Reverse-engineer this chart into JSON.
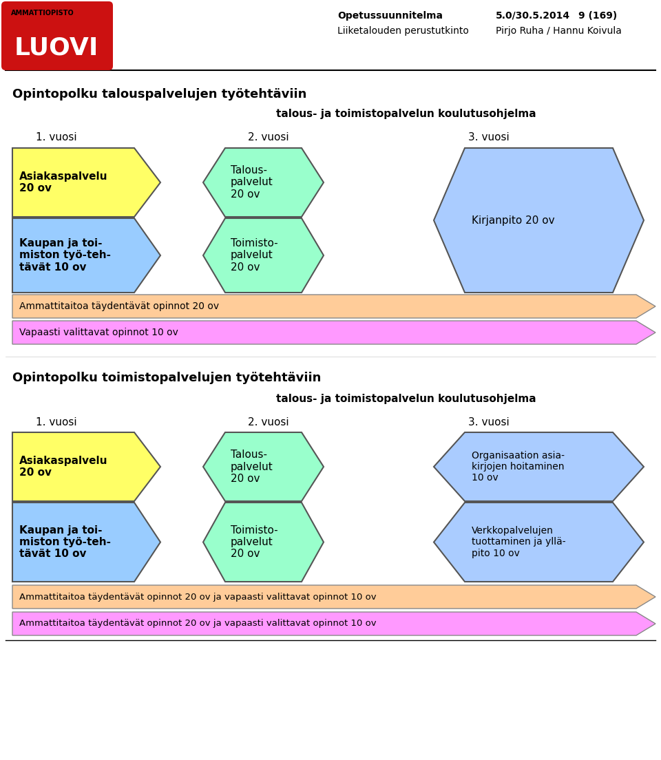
{
  "header_org": "AMMATTIOPISTO",
  "header_brand": "LUOVI",
  "header_text1": "Opetussuunnitelma",
  "header_text2": "Liiketalouden perustutkinto",
  "header_text3": "5.0/30.5.2014",
  "header_text4": "9 (169)",
  "header_text5": "Pirjo Ruha / Hannu Koivula",
  "section1_title": "Opintopolku talouspalvelujen työtehtäviin",
  "section1_subtitle": "talous- ja toimistopalvelun koulutusohjelma",
  "section1_year1": "1. vuosi",
  "section1_year2": "2. vuosi",
  "section1_year3": "3. vuosi",
  "s1_box1_text": "Asiakaspalvelu\n20 ov",
  "s1_box1_color": "#ffff66",
  "s1_box2_text": "Kaupan ja toi-\nmiston työ-teh-\ntävät 10 ov",
  "s1_box2_color": "#99ccff",
  "s1_box3_text": "Talous-\npalvelut\n20 ov",
  "s1_box3_color": "#99ffcc",
  "s1_box4_text": "Toimisto-\npalvelut\n20 ov",
  "s1_box4_color": "#99ffcc",
  "s1_box5_text": "Kirjanpito 20 ov",
  "s1_box5_color": "#aaccff",
  "s1_arrow1_text": "Ammattitaitoa täydentävät opinnot 20 ov",
  "s1_arrow1_color": "#ffcc99",
  "s1_arrow2_text": "Vapaasti valittavat opinnot 10 ov",
  "s1_arrow2_color": "#ff99ff",
  "section2_title": "Opintopolku toimistopalvelujen työtehtäviin",
  "section2_subtitle": "talous- ja toimistopalvelun koulutusohjelma",
  "section2_year1": "1. vuosi",
  "section2_year2": "2. vuosi",
  "section2_year3": "3. vuosi",
  "s2_box1_text": "Asiakaspalvelu\n20 ov",
  "s2_box1_color": "#ffff66",
  "s2_box2_text": "Kaupan ja toi-\nmiston työ-teh-\ntävät 10 ov",
  "s2_box2_color": "#99ccff",
  "s2_box3_text": "Talous-\npalvelut\n20 ov",
  "s2_box3_color": "#99ffcc",
  "s2_box4_text": "Toimisto-\npalvelut\n20 ov",
  "s2_box4_color": "#99ffcc",
  "s2_box5_text": "Organisaation asia-\nkirjojen hoitaminen\n10 ov",
  "s2_box5_color": "#aaccff",
  "s2_box6_text": "Verkkopalvelujen\ntuottaminen ja yllä-\npito 10 ov",
  "s2_box6_color": "#aaccff",
  "s2_arrow1_text": "Ammattitaitoa täydentävät opinnot 20 ov ja vapaasti valittavat opinnot 10 ov",
  "s2_arrow1_color": "#ffcc99",
  "s2_arrow2_text": "Ammattitaitoa täydentävät opinnot 20 ov ja vapaasti valittavat opinnot 10 ov",
  "s2_arrow2_color": "#ff99ff",
  "bg_color": "#ffffff"
}
